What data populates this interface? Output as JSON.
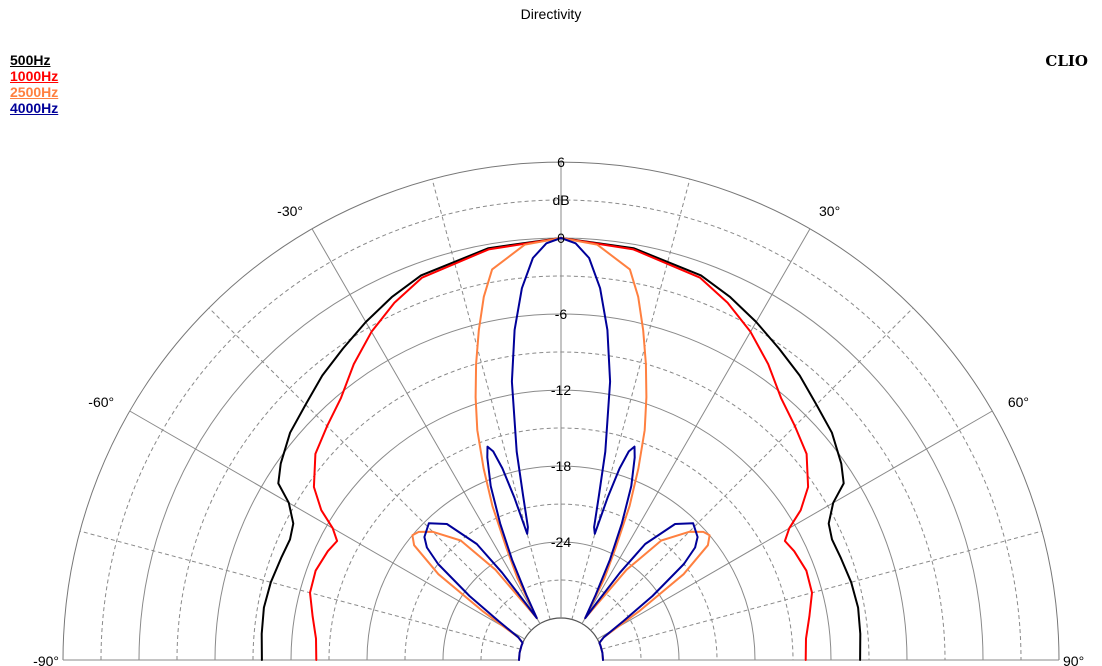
{
  "title": "Directivity",
  "brand": "CLIO",
  "legend": [
    {
      "name": "500Hz",
      "color": "#000000"
    },
    {
      "name": "1000Hz",
      "color": "#ff0000"
    },
    {
      "name": "2500Hz",
      "color": "#ff8040"
    },
    {
      "name": "4000Hz",
      "color": "#000099"
    }
  ],
  "chart_data": {
    "type": "polar-line",
    "title": "Directivity",
    "radial_unit": "dB",
    "radial_range": [
      -30,
      6
    ],
    "radial_ticks": [
      "6",
      "0",
      "-6",
      "-12",
      "-18",
      "-24"
    ],
    "angle_range": [
      -90,
      90
    ],
    "angle_labels": [
      "-90°",
      "-60°",
      "-30°",
      "30°",
      "60°",
      "90°"
    ],
    "grid": true,
    "legend_position": "top-left",
    "series": [
      {
        "name": "500Hz",
        "color": "#000000",
        "angles": [
          0,
          10,
          20,
          25,
          30,
          35,
          40,
          45,
          50,
          55,
          58,
          60,
          63,
          66,
          70,
          75,
          80,
          85,
          90
        ],
        "db": [
          0,
          -0.3,
          -1.0,
          -1.7,
          -2.5,
          -3.3,
          -4.0,
          -4.8,
          -5.4,
          -6.3,
          -7.0,
          -8.5,
          -9.6,
          -9.9,
          -9.8,
          -9.6,
          -9.5,
          -9.6,
          -9.7
        ]
      },
      {
        "name": "1000Hz",
        "color": "#ff0000",
        "angles": [
          0,
          10,
          20,
          25,
          30,
          35,
          40,
          45,
          50,
          55,
          58,
          60,
          62,
          65,
          70,
          75,
          80,
          85,
          90
        ],
        "db": [
          0,
          -0.4,
          -1.2,
          -2.2,
          -3.4,
          -4.8,
          -6.3,
          -7.2,
          -8.0,
          -9.5,
          -11.0,
          -12.5,
          -13.3,
          -13.0,
          -12.7,
          -12.8,
          -13.4,
          -13.9,
          -14.0
        ]
      },
      {
        "name": "2500Hz",
        "color": "#ff8040",
        "angles": [
          0,
          5,
          10,
          12,
          14,
          16,
          18,
          20,
          22,
          24,
          26,
          28,
          30,
          33,
          36,
          40,
          45,
          48,
          50,
          52,
          55,
          58,
          62,
          66,
          70,
          80,
          90
        ],
        "db": [
          0,
          -0.4,
          -2.0,
          -4.0,
          -6.5,
          -9.0,
          -11.5,
          -14.0,
          -17.0,
          -20.0,
          -23.5,
          -26.0,
          -29.5,
          -28.0,
          -24.5,
          -21.0,
          -19.0,
          -18.2,
          -18.0,
          -18.6,
          -21.5,
          -26.0,
          -29.5,
          -30.0,
          -30.0,
          -30.0,
          -30.0
        ]
      },
      {
        "name": "4000Hz",
        "color": "#000099",
        "angles": [
          0,
          2,
          4,
          6,
          8,
          10,
          12,
          13,
          14,
          15,
          16,
          17,
          18,
          19,
          20,
          22,
          24,
          26,
          28,
          30,
          32,
          34,
          36,
          40,
          44,
          48,
          50,
          52,
          55,
          58,
          62,
          66,
          70,
          80,
          90
        ],
        "db": [
          0,
          -0.4,
          -1.5,
          -3.8,
          -7.0,
          -11.0,
          -16.5,
          -20.0,
          -22.5,
          -23.0,
          -20.0,
          -17.5,
          -16.0,
          -15.5,
          -16.3,
          -18.5,
          -21.5,
          -24.5,
          -27.5,
          -29.5,
          -28.0,
          -25.0,
          -22.0,
          -19.3,
          -18.3,
          -18.8,
          -19.5,
          -21.0,
          -24.5,
          -27.5,
          -29.5,
          -30.0,
          -30.0,
          -30.0,
          -30.0
        ]
      }
    ]
  }
}
